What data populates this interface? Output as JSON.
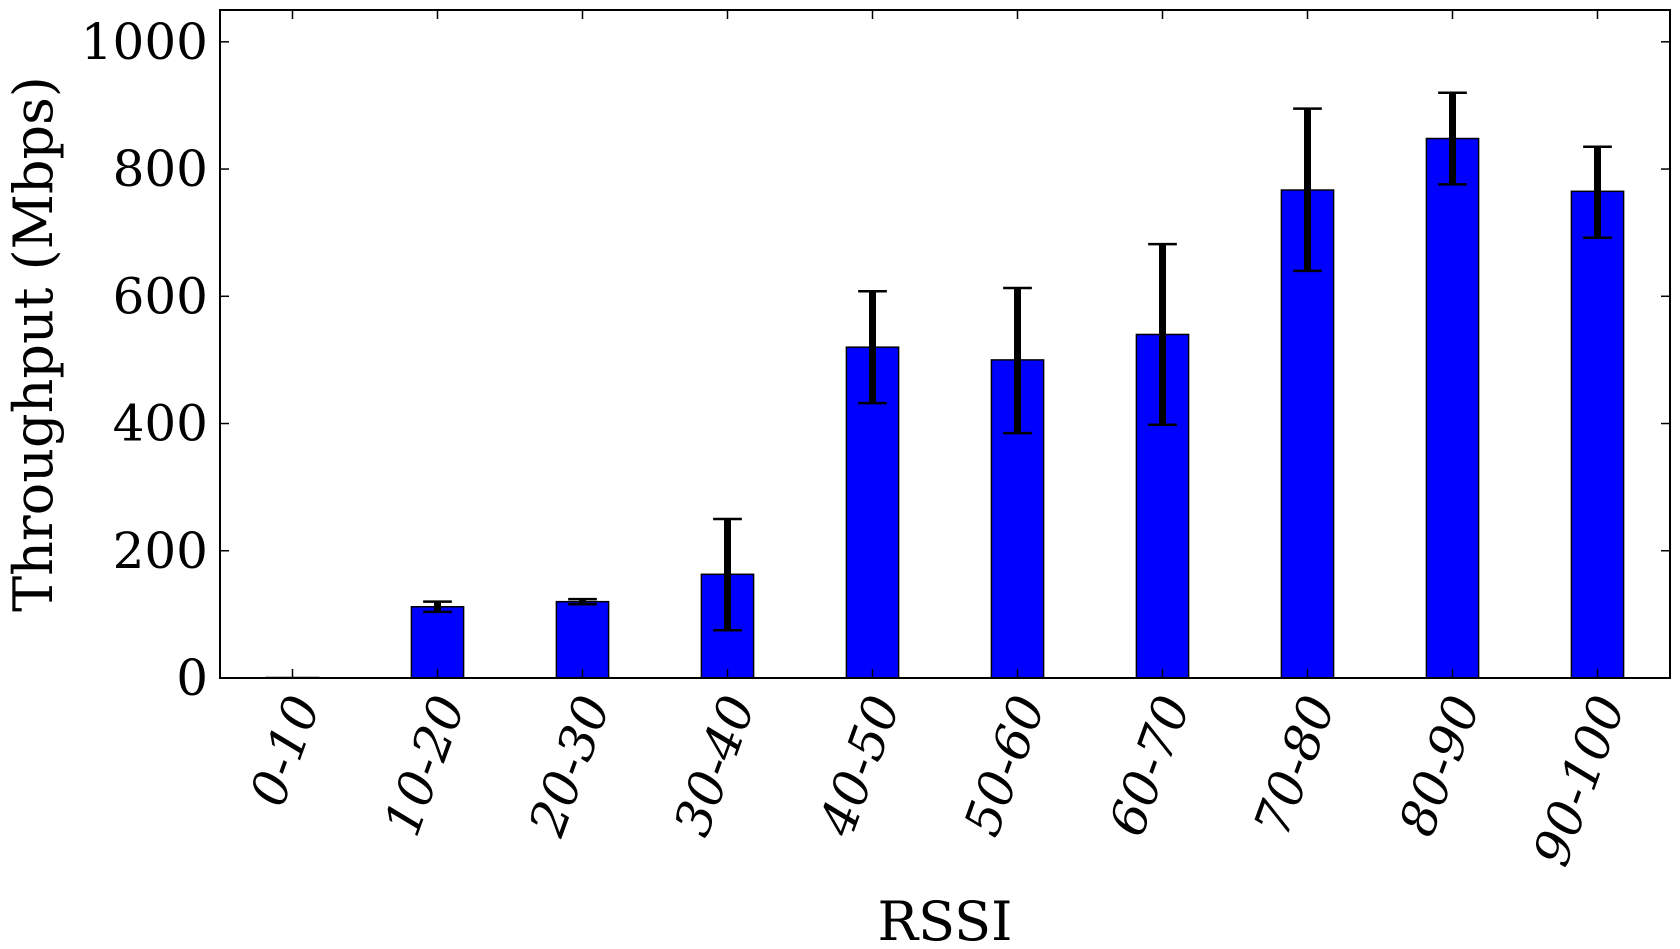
{
  "chart_data": {
    "type": "bar",
    "title": "",
    "xlabel": "RSSI",
    "ylabel": "Throughput (Mbps)",
    "categories": [
      "0-10",
      "10-20",
      "20-30",
      "30-40",
      "40-50",
      "50-60",
      "60-70",
      "70-80",
      "80-90",
      "90-100"
    ],
    "values": [
      0,
      112,
      120,
      163,
      520,
      500,
      540,
      767,
      848,
      765
    ],
    "error_low": [
      0,
      104,
      116,
      75,
      432,
      385,
      398,
      640,
      776,
      692
    ],
    "error_high": [
      0,
      120,
      124,
      250,
      608,
      613,
      682,
      895,
      920,
      835
    ],
    "ylim": [
      0,
      1050
    ],
    "yticks": [
      0,
      200,
      400,
      600,
      800,
      1000
    ],
    "grid": false,
    "legend": "none",
    "colors": {
      "bar_fill": "#0000ff",
      "bar_stroke": "#000000",
      "error_bar": "#000000"
    }
  }
}
